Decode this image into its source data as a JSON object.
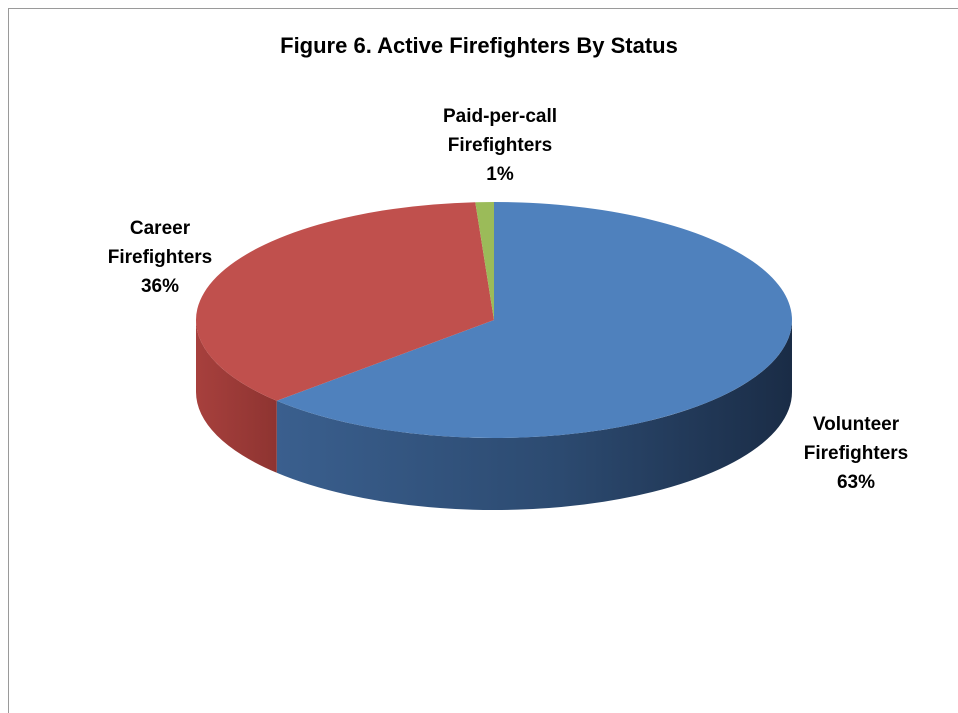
{
  "chart_data": {
    "type": "pie",
    "title": "Figure 6. Active Firefighters By Status",
    "slices": [
      {
        "label_line1": "Volunteer",
        "label_line2": "Firefighters",
        "pct_label": "63%",
        "value": 63,
        "color": "#4f81bd"
      },
      {
        "label_line1": "Career",
        "label_line2": "Firefighters",
        "pct_label": "36%",
        "value": 36,
        "color": "#c0504d"
      },
      {
        "label_line1": "Paid-per-call",
        "label_line2": "Firefighters",
        "pct_label": "1%",
        "value": 1,
        "color": "#9bbb59"
      }
    ],
    "style": "3d"
  }
}
